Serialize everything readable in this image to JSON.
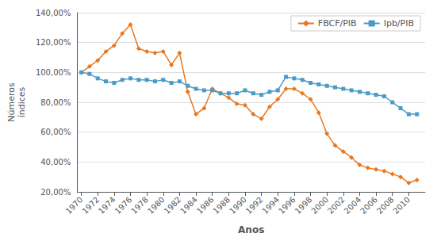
{
  "chart_data": {
    "type": "line",
    "xlabel": "Anos",
    "ylabel": "Números\níndices",
    "x": [
      1970,
      1971,
      1972,
      1973,
      1974,
      1975,
      1976,
      1977,
      1978,
      1979,
      1980,
      1981,
      1982,
      1983,
      1984,
      1985,
      1986,
      1987,
      1988,
      1989,
      1990,
      1991,
      1992,
      1993,
      1994,
      1995,
      1996,
      1997,
      1998,
      1999,
      2000,
      2001,
      2002,
      2003,
      2004,
      2005,
      2006,
      2007,
      2008,
      2009,
      2010,
      2011
    ],
    "series": [
      {
        "name": "FBCF/PIB",
        "color": "#E8771E",
        "marker": "diamond",
        "line_style": "solid",
        "values": [
          1.0,
          1.04,
          1.08,
          1.14,
          1.18,
          1.26,
          1.32,
          1.16,
          1.14,
          1.13,
          1.14,
          1.05,
          1.13,
          0.87,
          0.72,
          0.76,
          0.89,
          0.86,
          0.83,
          0.79,
          0.78,
          0.72,
          0.69,
          0.77,
          0.82,
          0.89,
          0.89,
          0.86,
          0.82,
          0.73,
          0.59,
          0.51,
          0.47,
          0.43,
          0.38,
          0.36,
          0.35,
          0.34,
          0.32,
          0.3,
          0.26,
          0.28
        ]
      },
      {
        "name": "Ipb/PIB",
        "color": "#4A9CC7",
        "marker": "square",
        "line_style": "solid",
        "values": [
          1.0,
          0.99,
          0.96,
          0.94,
          0.93,
          0.95,
          0.96,
          0.95,
          0.95,
          0.94,
          0.95,
          0.93,
          0.94,
          0.91,
          0.89,
          0.88,
          0.88,
          0.86,
          0.86,
          0.86,
          0.88,
          0.86,
          0.85,
          0.87,
          0.88,
          0.97,
          0.96,
          0.95,
          0.93,
          0.92,
          0.91,
          0.9,
          0.89,
          0.88,
          0.87,
          0.86,
          0.85,
          0.84,
          0.8,
          0.76,
          0.72,
          0.72
        ]
      }
    ],
    "xlim": [
      1969.5,
      2012
    ],
    "xticks": [
      1970,
      1972,
      1974,
      1976,
      1978,
      1980,
      1982,
      1984,
      1986,
      1988,
      1990,
      1992,
      1994,
      1996,
      1998,
      2000,
      2002,
      2004,
      2006,
      2008,
      2010
    ],
    "ylim": [
      0.2,
      1.4
    ],
    "yticks": [
      {
        "value": 0.2,
        "label": "20,00%"
      },
      {
        "value": 0.4,
        "label": "40,00%"
      },
      {
        "value": 0.6,
        "label": "60,00%"
      },
      {
        "value": 0.8,
        "label": "80,00%"
      },
      {
        "value": 1.0,
        "label": "100,00%"
      },
      {
        "value": 1.2,
        "label": "120,00%"
      },
      {
        "value": 1.4,
        "label": "140,00%"
      }
    ],
    "grid": true,
    "legend": "upper right"
  }
}
